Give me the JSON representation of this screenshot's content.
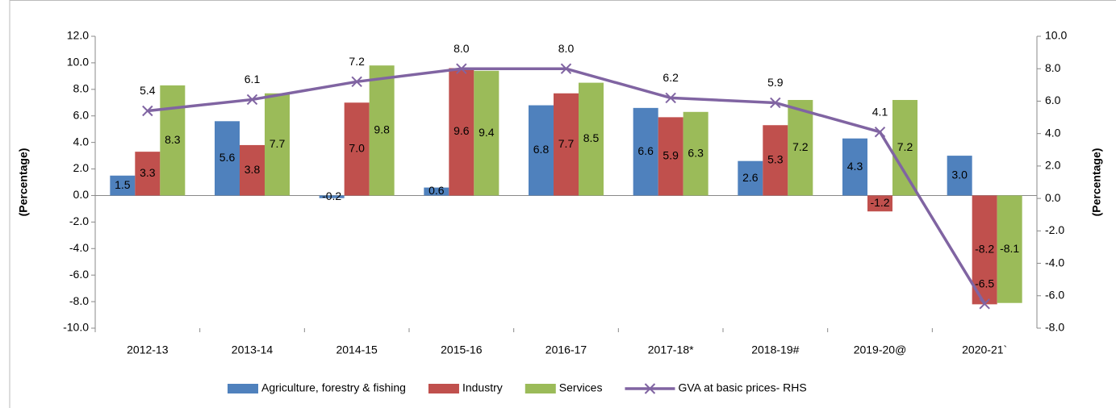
{
  "chart_data": {
    "type": "bar",
    "ylabel": "(Percentage)",
    "y2label": "(Percentage)",
    "categories": [
      "2012-13",
      "2013-14",
      "2014-15",
      "2015-16",
      "2016-17",
      "2017-18*",
      "2018-19#",
      "2019-20@",
      "2020-21`"
    ],
    "series": [
      {
        "name": "Agriculture, forestry & fishing",
        "color": "#4f81bd",
        "type": "bar",
        "values": [
          1.5,
          5.6,
          -0.2,
          0.6,
          6.8,
          6.6,
          2.6,
          4.3,
          3.0
        ],
        "value_labels": [
          "1.5",
          "5.6",
          "-0.2",
          "0.6",
          "6.8",
          "6.6",
          "2.6",
          "4.3",
          "3.0"
        ]
      },
      {
        "name": "Industry",
        "color": "#c0504d",
        "type": "bar",
        "values": [
          3.3,
          3.8,
          7.0,
          9.6,
          7.7,
          5.9,
          5.3,
          -1.2,
          -8.2
        ],
        "value_labels": [
          "3.3",
          "3.8",
          "7.0",
          "9.6",
          "7.7",
          "5.9",
          "5.3",
          "-1.2",
          "-8.2"
        ]
      },
      {
        "name": "Services",
        "color": "#9bbb59",
        "type": "bar",
        "values": [
          8.3,
          7.7,
          9.8,
          9.4,
          8.5,
          6.3,
          7.2,
          7.2,
          -8.1
        ],
        "value_labels": [
          "8.3",
          "7.7",
          "9.8",
          "9.4",
          "8.5",
          "6.3",
          "7.2",
          "7.2",
          "-8.1"
        ]
      },
      {
        "name": "GVA at basic prices- RHS",
        "color": "#8064a2",
        "type": "line",
        "axis": "y2",
        "values": [
          5.4,
          6.1,
          7.2,
          8.0,
          8.0,
          6.2,
          5.9,
          4.1,
          -6.5
        ],
        "value_labels": [
          "5.4",
          "6.1",
          "7.2",
          "8.0",
          "8.0",
          "6.2",
          "5.9",
          "4.1",
          "-6.5"
        ]
      }
    ],
    "ylim": [
      -10,
      12
    ],
    "yticks": [
      {
        "value": -10,
        "label": "-10.0"
      },
      {
        "value": -8,
        "label": "-8.0"
      },
      {
        "value": -6,
        "label": "-6.0"
      },
      {
        "value": -4,
        "label": "-4.0"
      },
      {
        "value": -2,
        "label": "-2.0"
      },
      {
        "value": 0,
        "label": "0.0"
      },
      {
        "value": 2,
        "label": "2.0"
      },
      {
        "value": 4,
        "label": "4.0"
      },
      {
        "value": 6,
        "label": "6.0"
      },
      {
        "value": 8,
        "label": "8.0"
      },
      {
        "value": 10,
        "label": "10.0"
      },
      {
        "value": 12,
        "label": "12.0"
      }
    ],
    "y2lim": [
      -8,
      10
    ],
    "y2ticks": [
      {
        "value": -8,
        "label": "-8.0"
      },
      {
        "value": -6,
        "label": "-6.0"
      },
      {
        "value": -4,
        "label": "-4.0"
      },
      {
        "value": -2,
        "label": "-2.0"
      },
      {
        "value": 0,
        "label": "0.0"
      },
      {
        "value": 2,
        "label": "2.0"
      },
      {
        "value": 4,
        "label": "4.0"
      },
      {
        "value": 6,
        "label": "6.0"
      },
      {
        "value": 8,
        "label": "8.0"
      },
      {
        "value": 10,
        "label": "10.0"
      }
    ],
    "legend": "bottom"
  }
}
